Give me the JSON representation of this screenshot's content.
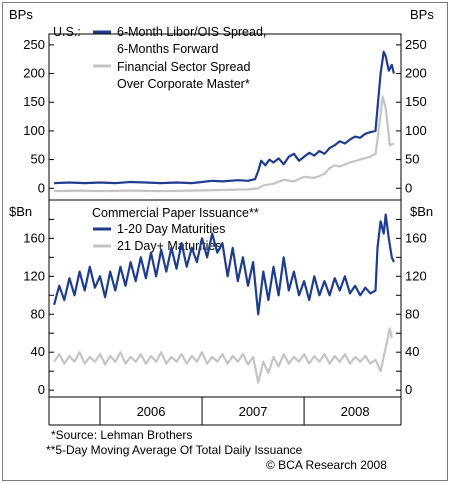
{
  "chart_data": [
    {
      "type": "line",
      "unit_left": "BPs",
      "unit_right": "BPs",
      "corner_label": "U.S.:",
      "ylim": [
        -10,
        255
      ],
      "yticks": [
        0,
        50,
        100,
        150,
        200,
        250
      ],
      "grid": false,
      "legend": "top-left, inside plot",
      "series": [
        {
          "name": "6-Month Libor/OIS Spread, 6-Months Forward",
          "legend_lines": [
            "6-Month Libor/OIS Spread,",
            "6-Months Forward"
          ],
          "color": "#1f3d8f",
          "points": [
            [
              2005.55,
              9
            ],
            [
              2005.7,
              10
            ],
            [
              2005.85,
              9
            ],
            [
              2006.0,
              10
            ],
            [
              2006.15,
              9
            ],
            [
              2006.3,
              11
            ],
            [
              2006.45,
              10
            ],
            [
              2006.6,
              9
            ],
            [
              2006.75,
              10
            ],
            [
              2006.9,
              9
            ],
            [
              2007.0,
              11
            ],
            [
              2007.1,
              13
            ],
            [
              2007.2,
              12
            ],
            [
              2007.35,
              14
            ],
            [
              2007.45,
              13
            ],
            [
              2007.52,
              16
            ],
            [
              2007.55,
              30
            ],
            [
              2007.58,
              48
            ],
            [
              2007.62,
              40
            ],
            [
              2007.66,
              50
            ],
            [
              2007.7,
              45
            ],
            [
              2007.75,
              52
            ],
            [
              2007.8,
              42
            ],
            [
              2007.85,
              55
            ],
            [
              2007.9,
              60
            ],
            [
              2007.95,
              48
            ],
            [
              2008.0,
              55
            ],
            [
              2008.05,
              62
            ],
            [
              2008.1,
              57
            ],
            [
              2008.15,
              65
            ],
            [
              2008.2,
              60
            ],
            [
              2008.25,
              70
            ],
            [
              2008.3,
              75
            ],
            [
              2008.35,
              82
            ],
            [
              2008.4,
              78
            ],
            [
              2008.45,
              85
            ],
            [
              2008.5,
              90
            ],
            [
              2008.55,
              88
            ],
            [
              2008.6,
              95
            ],
            [
              2008.65,
              98
            ],
            [
              2008.7,
              100
            ],
            [
              2008.72,
              140
            ],
            [
              2008.75,
              200
            ],
            [
              2008.78,
              238
            ],
            [
              2008.8,
              230
            ],
            [
              2008.83,
              205
            ],
            [
              2008.86,
              215
            ],
            [
              2008.88,
              200
            ]
          ]
        },
        {
          "name": "Financial Sector Spread Over Corporate Master*",
          "legend_lines": [
            "Financial Sector Spread",
            "Over Corporate Master*"
          ],
          "color": "#c4c4c4",
          "points": [
            [
              2005.55,
              -5
            ],
            [
              2005.8,
              -4
            ],
            [
              2006.0,
              -5
            ],
            [
              2006.3,
              -4
            ],
            [
              2006.6,
              -5
            ],
            [
              2006.9,
              -4
            ],
            [
              2007.2,
              -3
            ],
            [
              2007.45,
              -2
            ],
            [
              2007.55,
              0
            ],
            [
              2007.6,
              5
            ],
            [
              2007.7,
              8
            ],
            [
              2007.8,
              15
            ],
            [
              2007.9,
              12
            ],
            [
              2008.0,
              20
            ],
            [
              2008.1,
              18
            ],
            [
              2008.2,
              25
            ],
            [
              2008.25,
              35
            ],
            [
              2008.3,
              40
            ],
            [
              2008.35,
              38
            ],
            [
              2008.45,
              45
            ],
            [
              2008.55,
              50
            ],
            [
              2008.65,
              55
            ],
            [
              2008.7,
              60
            ],
            [
              2008.72,
              85
            ],
            [
              2008.75,
              130
            ],
            [
              2008.77,
              160
            ],
            [
              2008.8,
              140
            ],
            [
              2008.82,
              110
            ],
            [
              2008.84,
              75
            ],
            [
              2008.88,
              78
            ]
          ]
        }
      ]
    },
    {
      "type": "line",
      "unit_left": "$Bn",
      "unit_right": "$Bn",
      "ylim": [
        -3,
        192
      ],
      "yticks": [
        0,
        20,
        40,
        60,
        80,
        100,
        120,
        140,
        160,
        180
      ],
      "ytick_labels": [
        "0",
        "",
        "40",
        "",
        "80",
        "",
        "120",
        "",
        "160",
        ""
      ],
      "grid": false,
      "title": "Commercial Paper Issuance**",
      "legend": "top-left, inside plot",
      "xticks": [
        "2006",
        "2007",
        "2008"
      ],
      "series": [
        {
          "name": "1-20 Day Maturities",
          "color": "#1f3d8f",
          "points": [
            [
              2005.55,
              90
            ],
            [
              2005.6,
              110
            ],
            [
              2005.65,
              95
            ],
            [
              2005.7,
              118
            ],
            [
              2005.75,
              100
            ],
            [
              2005.8,
              125
            ],
            [
              2005.85,
              105
            ],
            [
              2005.9,
              130
            ],
            [
              2005.95,
              108
            ],
            [
              2006.0,
              120
            ],
            [
              2006.05,
              98
            ],
            [
              2006.1,
              125
            ],
            [
              2006.15,
              105
            ],
            [
              2006.2,
              130
            ],
            [
              2006.25,
              110
            ],
            [
              2006.3,
              135
            ],
            [
              2006.35,
              115
            ],
            [
              2006.4,
              140
            ],
            [
              2006.45,
              118
            ],
            [
              2006.5,
              145
            ],
            [
              2006.55,
              120
            ],
            [
              2006.6,
              148
            ],
            [
              2006.65,
              125
            ],
            [
              2006.7,
              150
            ],
            [
              2006.75,
              128
            ],
            [
              2006.8,
              155
            ],
            [
              2006.85,
              130
            ],
            [
              2006.9,
              150
            ],
            [
              2006.95,
              135
            ],
            [
              2007.0,
              160
            ],
            [
              2007.05,
              140
            ],
            [
              2007.1,
              165
            ],
            [
              2007.15,
              145
            ],
            [
              2007.2,
              155
            ],
            [
              2007.25,
              120
            ],
            [
              2007.3,
              150
            ],
            [
              2007.35,
              115
            ],
            [
              2007.4,
              140
            ],
            [
              2007.45,
              110
            ],
            [
              2007.5,
              135
            ],
            [
              2007.55,
              80
            ],
            [
              2007.6,
              125
            ],
            [
              2007.65,
              95
            ],
            [
              2007.7,
              130
            ],
            [
              2007.75,
              100
            ],
            [
              2007.8,
              140
            ],
            [
              2007.85,
              105
            ],
            [
              2007.9,
              125
            ],
            [
              2007.95,
              100
            ],
            [
              2008.0,
              115
            ],
            [
              2008.05,
              95
            ],
            [
              2008.1,
              120
            ],
            [
              2008.15,
              100
            ],
            [
              2008.2,
              115
            ],
            [
              2008.25,
              100
            ],
            [
              2008.3,
              118
            ],
            [
              2008.35,
              105
            ],
            [
              2008.4,
              120
            ],
            [
              2008.45,
              102
            ],
            [
              2008.5,
              110
            ],
            [
              2008.55,
              100
            ],
            [
              2008.6,
              108
            ],
            [
              2008.65,
              102
            ],
            [
              2008.7,
              105
            ],
            [
              2008.72,
              150
            ],
            [
              2008.75,
              178
            ],
            [
              2008.78,
              165
            ],
            [
              2008.8,
              185
            ],
            [
              2008.83,
              160
            ],
            [
              2008.86,
              140
            ],
            [
              2008.88,
              135
            ]
          ]
        },
        {
          "name": "21 Day+ Maturities",
          "color": "#c4c4c4",
          "points": [
            [
              2005.55,
              30
            ],
            [
              2005.6,
              38
            ],
            [
              2005.65,
              28
            ],
            [
              2005.7,
              36
            ],
            [
              2005.75,
              30
            ],
            [
              2005.8,
              40
            ],
            [
              2005.85,
              28
            ],
            [
              2005.9,
              35
            ],
            [
              2005.95,
              30
            ],
            [
              2006.0,
              38
            ],
            [
              2006.05,
              27
            ],
            [
              2006.1,
              36
            ],
            [
              2006.15,
              30
            ],
            [
              2006.2,
              40
            ],
            [
              2006.25,
              28
            ],
            [
              2006.3,
              35
            ],
            [
              2006.35,
              30
            ],
            [
              2006.4,
              38
            ],
            [
              2006.45,
              28
            ],
            [
              2006.5,
              36
            ],
            [
              2006.55,
              30
            ],
            [
              2006.6,
              40
            ],
            [
              2006.65,
              28
            ],
            [
              2006.7,
              35
            ],
            [
              2006.75,
              30
            ],
            [
              2006.8,
              38
            ],
            [
              2006.85,
              28
            ],
            [
              2006.9,
              36
            ],
            [
              2006.95,
              30
            ],
            [
              2007.0,
              40
            ],
            [
              2007.05,
              28
            ],
            [
              2007.1,
              35
            ],
            [
              2007.15,
              30
            ],
            [
              2007.2,
              38
            ],
            [
              2007.25,
              28
            ],
            [
              2007.3,
              36
            ],
            [
              2007.35,
              30
            ],
            [
              2007.4,
              38
            ],
            [
              2007.45,
              27
            ],
            [
              2007.5,
              35
            ],
            [
              2007.55,
              8
            ],
            [
              2007.6,
              30
            ],
            [
              2007.65,
              18
            ],
            [
              2007.7,
              35
            ],
            [
              2007.75,
              25
            ],
            [
              2007.8,
              38
            ],
            [
              2007.85,
              28
            ],
            [
              2007.9,
              35
            ],
            [
              2007.95,
              30
            ],
            [
              2008.0,
              38
            ],
            [
              2008.05,
              28
            ],
            [
              2008.1,
              36
            ],
            [
              2008.15,
              30
            ],
            [
              2008.2,
              38
            ],
            [
              2008.25,
              28
            ],
            [
              2008.3,
              36
            ],
            [
              2008.35,
              30
            ],
            [
              2008.4,
              38
            ],
            [
              2008.45,
              28
            ],
            [
              2008.5,
              35
            ],
            [
              2008.55,
              30
            ],
            [
              2008.6,
              36
            ],
            [
              2008.65,
              28
            ],
            [
              2008.7,
              32
            ],
            [
              2008.75,
              20
            ],
            [
              2008.8,
              45
            ],
            [
              2008.84,
              65
            ],
            [
              2008.86,
              55
            ]
          ]
        }
      ]
    }
  ],
  "footnotes": [
    "*Source: Lehman Brothers",
    "**5-Day Moving Average Of Total Daily Issuance",
    "© BCA Research 2008"
  ]
}
